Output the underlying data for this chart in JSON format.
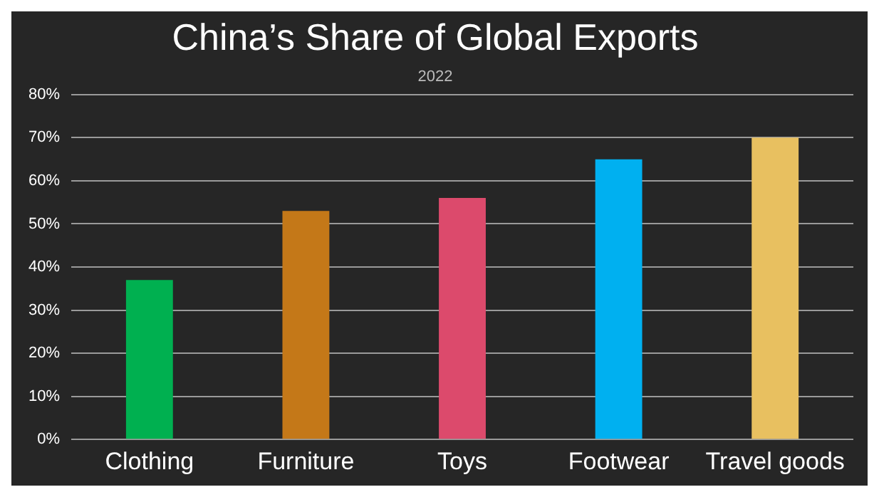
{
  "chart_data": {
    "type": "bar",
    "title": "China’s Share of Global Exports",
    "subtitle": "2022",
    "categories": [
      "Clothing",
      "Furniture",
      "Toys",
      "Footwear",
      "Travel goods"
    ],
    "values": [
      37,
      53,
      56,
      65,
      70
    ],
    "colors": [
      "#00b050",
      "#c47818",
      "#dc4a6c",
      "#00b0f0",
      "#e8c060"
    ],
    "ylim": [
      0,
      80
    ],
    "yticks": [
      {
        "value": 0,
        "label": "0%"
      },
      {
        "value": 10,
        "label": "10%"
      },
      {
        "value": 20,
        "label": "20%"
      },
      {
        "value": 30,
        "label": "30%"
      },
      {
        "value": 40,
        "label": "40%"
      },
      {
        "value": 50,
        "label": "50%"
      },
      {
        "value": 60,
        "label": "60%"
      },
      {
        "value": 70,
        "label": "70%"
      },
      {
        "value": 80,
        "label": "80%"
      }
    ],
    "grid": "y",
    "legend": false
  }
}
